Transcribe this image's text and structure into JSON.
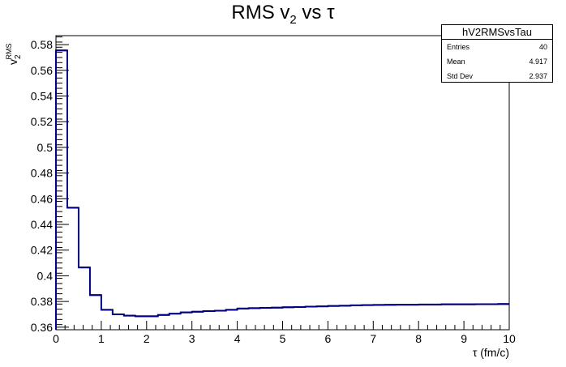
{
  "chart_data": {
    "type": "step",
    "title_parts": [
      "RMS v",
      "2",
      " vs   τ"
    ],
    "xlabel": "τ (fm/c)",
    "ylabel": "v",
    "ylabel_sub": "2",
    "ylabel_sup": "RMS",
    "xlim": [
      0,
      10
    ],
    "ylim": [
      0.358,
      0.587
    ],
    "xticks": [
      "0",
      "1",
      "2",
      "3",
      "4",
      "5",
      "6",
      "7",
      "8",
      "9",
      "10"
    ],
    "yticks": [
      "0.36",
      "0.38",
      "0.4",
      "0.42",
      "0.44",
      "0.46",
      "0.48",
      "0.5",
      "0.52",
      "0.54",
      "0.56",
      "0.58"
    ],
    "bin_width": 0.25,
    "values": [
      0.5755,
      0.453,
      0.4065,
      0.385,
      0.3735,
      0.37,
      0.369,
      0.3685,
      0.3685,
      0.3695,
      0.3705,
      0.3715,
      0.372,
      0.3725,
      0.3728,
      0.3735,
      0.3745,
      0.3748,
      0.375,
      0.3752,
      0.3755,
      0.3757,
      0.376,
      0.3762,
      0.3765,
      0.3767,
      0.377,
      0.3772,
      0.3773,
      0.3774,
      0.3775,
      0.3775,
      0.3776,
      0.3776,
      0.3778,
      0.3778,
      0.3778,
      0.3779,
      0.3779,
      0.378
    ],
    "line_color": "#000080",
    "grid": false,
    "stats_box": {
      "name": "hV2RMSvsTau",
      "rows": [
        {
          "label": "Entries",
          "value": "40"
        },
        {
          "label": "Mean",
          "value": "4.917"
        },
        {
          "label": "Std Dev",
          "value": "2.937"
        }
      ]
    }
  }
}
